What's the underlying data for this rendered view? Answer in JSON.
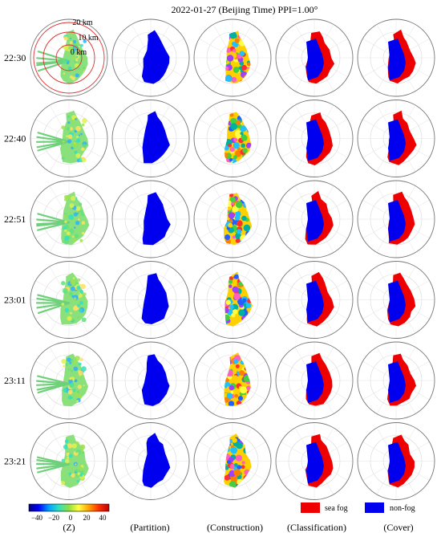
{
  "figure": {
    "title": "2022-01-27 (Beijing Time) PPI=1.00°",
    "rows": [
      "22:30",
      "22:40",
      "22:51",
      "23:01",
      "23:11",
      "23:21"
    ],
    "columns": [
      "(Z)",
      "(Partition)",
      "(Construction)",
      "(Classification)",
      "(Cover)"
    ],
    "range_rings": [
      "20 km",
      "10 km",
      "0 km"
    ]
  },
  "colorbar": {
    "ticks": [
      "−40",
      "−20",
      "0",
      "20",
      "40"
    ],
    "colors": [
      "#000080",
      "#0000ff",
      "#00a0ff",
      "#30e0c0",
      "#90e040",
      "#ffff40",
      "#ffa000",
      "#ff3000",
      "#c00000"
    ]
  },
  "legend": {
    "items": [
      {
        "label": "sea fog",
        "color": "#ee0000"
      },
      {
        "label": "non-fog",
        "color": "#0000ee"
      }
    ]
  }
}
